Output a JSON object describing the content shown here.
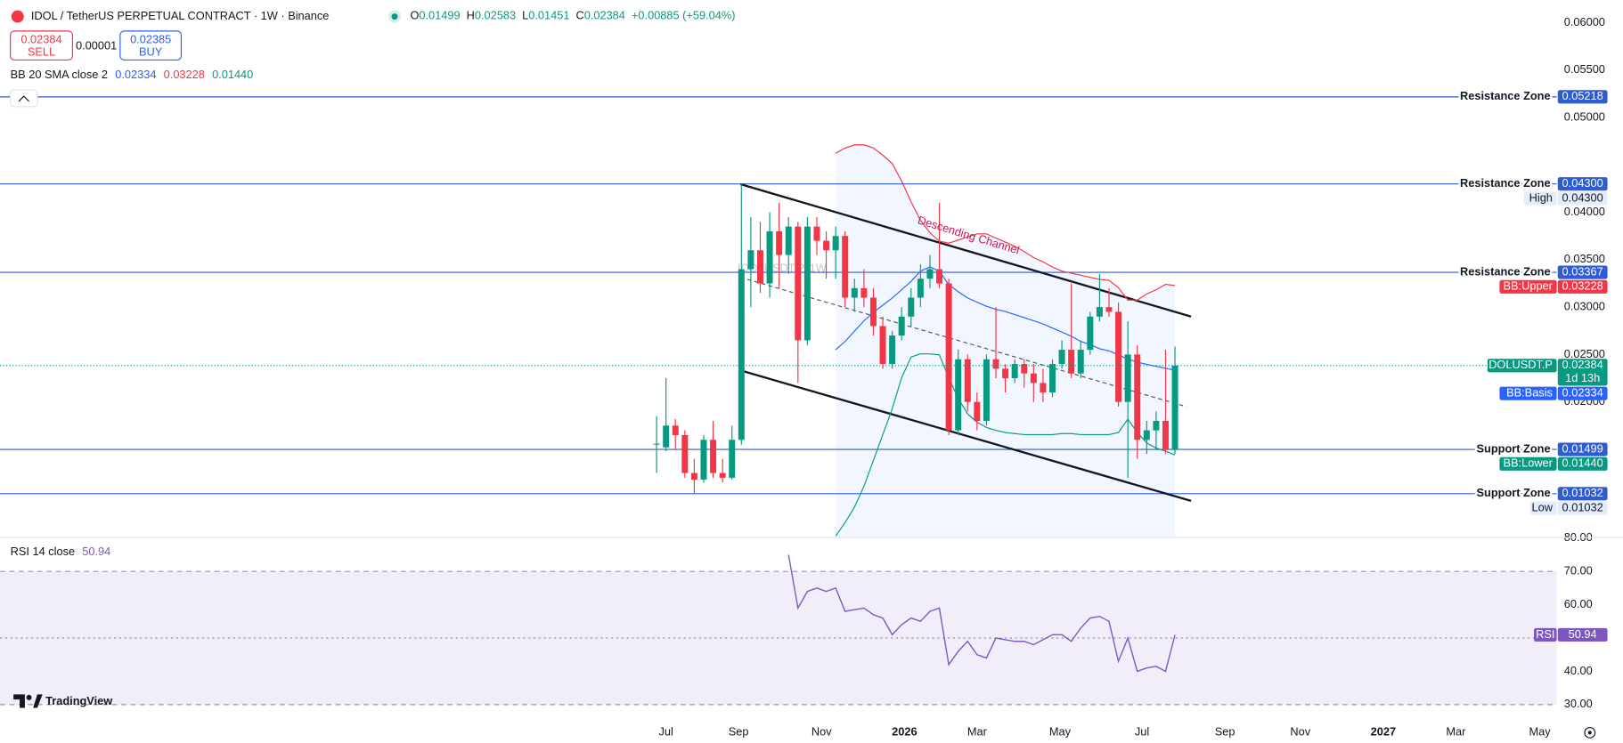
{
  "header": {
    "title": "IDOL / TetherUS PERPETUAL CONTRACT · 1W · Binance",
    "ohlc": [
      {
        "key": "O",
        "value": "0.01499"
      },
      {
        "key": "H",
        "value": "0.02583"
      },
      {
        "key": "L",
        "value": "0.01451"
      },
      {
        "key": "C",
        "value": "0.02384"
      }
    ],
    "change": "+0.00885 (+59.04%)",
    "sell": {
      "price": "0.02384",
      "label": "SELL"
    },
    "spread": "0.00001",
    "buy": {
      "price": "0.02385",
      "label": "BUY"
    }
  },
  "brand": "TradingView",
  "chart_data": [
    {
      "type": "candlestick",
      "watermark": "IDOLUSDT.P, 1W",
      "indicator": "BB 20 SMA close 2",
      "annotation": "Descending Channel",
      "symbol": "IDOLUSDT.P",
      "countdown": "1d 13h",
      "up_color": "#089981",
      "down_color": "#f23645",
      "hline_color": "#2f5bd3",
      "xlim": [
        -70.66,
        94.5
      ],
      "ylim": [
        0.00574,
        0.0624
      ],
      "xticks": [
        {
          "value": 0,
          "label": "Jul"
        },
        {
          "value": 7.7,
          "label": "Sep"
        },
        {
          "value": 16.5,
          "label": "Nov"
        },
        {
          "value": 25.3,
          "label": "2026"
        },
        {
          "value": 33,
          "label": "Mar"
        },
        {
          "value": 41.8,
          "label": "May"
        },
        {
          "value": 50.5,
          "label": "Jul"
        },
        {
          "value": 59.3,
          "label": "Sep"
        },
        {
          "value": 67.3,
          "label": "Nov"
        },
        {
          "value": 76.1,
          "label": "2027"
        },
        {
          "value": 83.8,
          "label": "Mar"
        },
        {
          "value": 92.7,
          "label": "May"
        }
      ],
      "yticks": [
        {
          "value": 0.06,
          "label": "0.06000"
        },
        {
          "value": 0.055,
          "label": "0.05500"
        },
        {
          "value": 0.05,
          "label": "0.05000"
        },
        {
          "value": 0.04,
          "label": "0.04000"
        },
        {
          "value": 0.035,
          "label": "0.03500"
        },
        {
          "value": 0.03,
          "label": "0.03000"
        },
        {
          "value": 0.025,
          "label": "0.02500"
        },
        {
          "value": 0.02,
          "label": "0.02000"
        }
      ],
      "x": [
        -1,
        0,
        1,
        2,
        3,
        4,
        5,
        6,
        7,
        8,
        9,
        10,
        11,
        12,
        13,
        14,
        15,
        16,
        17,
        18,
        19,
        20,
        21,
        22,
        23,
        24,
        25,
        26,
        27,
        28,
        29,
        30,
        31,
        32,
        33,
        34,
        35,
        36,
        37,
        38,
        39,
        40,
        41,
        42,
        43,
        44,
        45,
        46,
        47,
        48,
        49,
        50,
        51,
        52,
        53,
        54
      ],
      "candles": {
        "open": [
          0.0155,
          0.0152,
          0.0175,
          0.0165,
          0.0125,
          0.0118,
          0.016,
          0.0125,
          0.012,
          0.016,
          0.034,
          0.036,
          0.0325,
          0.038,
          0.0355,
          0.0385,
          0.0265,
          0.0385,
          0.037,
          0.036,
          0.0375,
          0.031,
          0.032,
          0.031,
          0.028,
          0.024,
          0.027,
          0.029,
          0.031,
          0.033,
          0.034,
          0.0325,
          0.017,
          0.0245,
          0.02,
          0.018,
          0.0245,
          0.0235,
          0.0225,
          0.024,
          0.023,
          0.022,
          0.021,
          0.024,
          0.0255,
          0.023,
          0.0255,
          0.029,
          0.03,
          0.0295,
          0.02,
          0.025,
          0.016,
          0.017,
          0.018,
          0.01499
        ],
        "high": [
          0.0185,
          0.0225,
          0.0182,
          0.017,
          0.014,
          0.0165,
          0.018,
          0.014,
          0.0175,
          0.043,
          0.0395,
          0.039,
          0.04,
          0.041,
          0.0395,
          0.039,
          0.0395,
          0.0395,
          0.038,
          0.0385,
          0.038,
          0.033,
          0.034,
          0.032,
          0.029,
          0.0275,
          0.03,
          0.032,
          0.0345,
          0.0355,
          0.041,
          0.033,
          0.0255,
          0.025,
          0.021,
          0.025,
          0.03,
          0.024,
          0.0245,
          0.0245,
          0.024,
          0.0235,
          0.0245,
          0.0265,
          0.0325,
          0.0265,
          0.0295,
          0.0335,
          0.032,
          0.0305,
          0.0285,
          0.026,
          0.018,
          0.019,
          0.0255,
          0.02583
        ],
        "low": [
          0.0125,
          0.0148,
          0.015,
          0.012,
          0.01032,
          0.0115,
          0.012,
          0.0115,
          0.0118,
          0.0155,
          0.03,
          0.0315,
          0.031,
          0.032,
          0.0335,
          0.022,
          0.026,
          0.0355,
          0.033,
          0.033,
          0.03,
          0.0295,
          0.03,
          0.027,
          0.0235,
          0.0235,
          0.0265,
          0.028,
          0.03,
          0.032,
          0.032,
          0.0165,
          0.0165,
          0.019,
          0.017,
          0.0175,
          0.0225,
          0.021,
          0.022,
          0.0215,
          0.02,
          0.02,
          0.0205,
          0.0235,
          0.0225,
          0.0225,
          0.025,
          0.0285,
          0.029,
          0.0195,
          0.012,
          0.014,
          0.0145,
          0.015,
          0.0145,
          0.01451
        ],
        "close": [
          0.0156,
          0.0175,
          0.0165,
          0.0125,
          0.0118,
          0.016,
          0.0125,
          0.012,
          0.016,
          0.034,
          0.036,
          0.0325,
          0.038,
          0.0355,
          0.0385,
          0.0265,
          0.0385,
          0.037,
          0.036,
          0.0375,
          0.031,
          0.032,
          0.031,
          0.028,
          0.024,
          0.027,
          0.029,
          0.031,
          0.033,
          0.034,
          0.0325,
          0.017,
          0.0245,
          0.02,
          0.018,
          0.0245,
          0.0235,
          0.0225,
          0.024,
          0.023,
          0.022,
          0.021,
          0.024,
          0.0255,
          0.023,
          0.0255,
          0.029,
          0.03,
          0.0295,
          0.02,
          0.025,
          0.016,
          0.017,
          0.018,
          0.015,
          0.02384
        ]
      },
      "series": [
        {
          "name": "BB:Upper",
          "color": "#f23645",
          "last_label": "0.03228",
          "values": [
            null,
            null,
            null,
            null,
            null,
            null,
            null,
            null,
            null,
            null,
            null,
            null,
            null,
            null,
            null,
            null,
            null,
            null,
            null,
            0.04624,
            0.04679,
            0.04712,
            0.04712,
            0.04679,
            0.04603,
            0.04515,
            0.0433,
            0.04111,
            0.03915,
            0.03784,
            0.03697,
            0.03675,
            0.03707,
            0.0374,
            0.03773,
            0.03773,
            0.03729,
            0.03686,
            0.03642,
            0.03587,
            0.03522,
            0.03478,
            0.03424,
            0.0338,
            0.03358,
            0.03336,
            0.03314,
            0.03293,
            0.03282,
            0.03205,
            0.03074,
            0.03074,
            0.0314,
            0.03183,
            0.0324,
            0.03228
          ]
        },
        {
          "name": "BB:Basis",
          "color": "#2962ff",
          "last_label": "0.02334",
          "values": [
            null,
            null,
            null,
            null,
            null,
            null,
            null,
            null,
            null,
            null,
            null,
            null,
            null,
            null,
            null,
            null,
            null,
            null,
            null,
            0.0255,
            0.02638,
            0.02747,
            0.02856,
            0.02943,
            0.0302,
            0.03096,
            0.03183,
            0.03271,
            0.0338,
            0.03424,
            0.0338,
            0.03238,
            0.03162,
            0.03096,
            0.03052,
            0.03009,
            0.02976,
            0.02954,
            0.02921,
            0.02889,
            0.02856,
            0.02823,
            0.02779,
            0.02736,
            0.02692,
            0.02638,
            0.02605,
            0.02561,
            0.02539,
            0.02496,
            0.02452,
            0.02419,
            0.02397,
            0.02375,
            0.02354,
            0.02334
          ]
        },
        {
          "name": "BB:Lower",
          "color": "#089981",
          "last_label": "0.01440",
          "values": [
            null,
            null,
            null,
            null,
            null,
            null,
            null,
            null,
            null,
            null,
            null,
            null,
            null,
            null,
            null,
            null,
            null,
            null,
            null,
            0.00585,
            0.00727,
            0.00891,
            0.01109,
            0.01382,
            0.01655,
            0.01928,
            0.02255,
            0.02474,
            0.02507,
            0.02507,
            0.02496,
            0.02255,
            0.02037,
            0.01873,
            0.01786,
            0.01731,
            0.01699,
            0.01677,
            0.01666,
            0.01655,
            0.01655,
            0.01655,
            0.01655,
            0.01666,
            0.01666,
            0.01655,
            0.01655,
            0.01655,
            0.01655,
            0.01677,
            0.01818,
            0.01677,
            0.01568,
            0.01513,
            0.0148,
            0.0144
          ]
        }
      ],
      "trendlines": [
        {
          "x": [
            7.9,
            55.7
          ],
          "y": [
            0.04297,
            0.029
          ],
          "dashed": false
        },
        {
          "x": [
            7.9,
            55.7
          ],
          "y": [
            0.02332,
            0.00956
          ],
          "dashed": false
        },
        {
          "x": [
            7.9,
            55.2
          ],
          "y": [
            0.03314,
            0.0195
          ],
          "dashed": true
        }
      ],
      "hlines": [
        {
          "name": "Resistance Zone",
          "value": 0.05218,
          "value_label": "0.05218"
        },
        {
          "name": "Resistance Zone",
          "value": 0.043,
          "value_label": "0.04300"
        },
        {
          "name": "Resistance Zone",
          "value": 0.03367,
          "value_label": "0.03367"
        },
        {
          "name": "Support Zone",
          "value": 0.01499,
          "value_label": "0.01499"
        },
        {
          "name": "Support Zone",
          "value": 0.01032,
          "value_label": "0.01032"
        }
      ],
      "extremes": [
        {
          "name": "High",
          "value": 0.043,
          "value_label": "0.04300"
        },
        {
          "name": "Low",
          "value": 0.01032,
          "value_label": "0.01032"
        }
      ]
    },
    {
      "type": "line",
      "title": "RSI 14 close",
      "ylim": [
        25,
        80
      ],
      "yticks": [
        {
          "value": 80,
          "label": "80.00"
        },
        {
          "value": 70,
          "label": "70.00"
        },
        {
          "value": 60,
          "label": "60.00"
        },
        {
          "value": 40,
          "label": "40.00"
        },
        {
          "value": 30,
          "label": "30.00"
        }
      ],
      "levels": [
        70,
        50,
        30
      ],
      "series": [
        {
          "name": "RSI",
          "color": "#7e57c2",
          "values": [
            null,
            null,
            null,
            null,
            null,
            null,
            null,
            null,
            null,
            null,
            null,
            null,
            null,
            null,
            75,
            59,
            64,
            65,
            64,
            65,
            58,
            58.5,
            59,
            57,
            56,
            51,
            54,
            56,
            55,
            58,
            59,
            42,
            46,
            49,
            45,
            44,
            50,
            49.5,
            49,
            49,
            48,
            49.5,
            51,
            51,
            49,
            53,
            56,
            56.5,
            55,
            43,
            50,
            40,
            41,
            41.5,
            40,
            50.94
          ]
        }
      ]
    }
  ]
}
